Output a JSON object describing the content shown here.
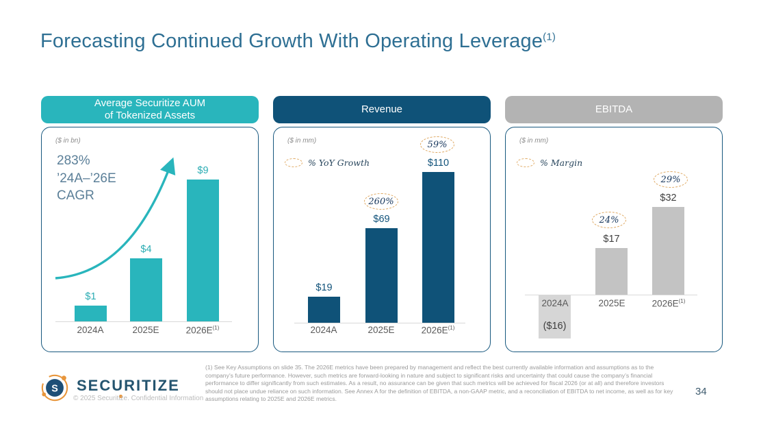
{
  "slide": {
    "title": "Forecasting Continued Growth With Operating Leverage",
    "footnote_marker": "(1)",
    "page_number": "34",
    "title_color": "#2e6f93"
  },
  "chart_data": [
    {
      "type": "bar",
      "title": "Average Securitize AUM\nof Tokenized Assets",
      "header_color": "#29b5bc",
      "unit": "($ in bn)",
      "annotation": "283%\n’24A–’26E\nCAGR",
      "categories": [
        "2024A",
        "2025E",
        "2026E"
      ],
      "values": [
        1,
        4,
        9
      ],
      "value_labels": [
        "$1",
        "$4",
        "$9"
      ],
      "bar_color": "#29b5bc",
      "ylim": [
        0,
        10
      ],
      "grid": false
    },
    {
      "type": "bar",
      "title": "Revenue",
      "header_color": "#0f5278",
      "unit": "($ in mm)",
      "legend": "% YoY Growth",
      "legend_position": "top-left",
      "categories": [
        "2024A",
        "2025E",
        "2026E"
      ],
      "values": [
        19,
        69,
        110
      ],
      "value_labels": [
        "$19",
        "$69",
        "$110"
      ],
      "growth_labels": [
        "",
        "260%",
        "59%"
      ],
      "bar_color": "#0f5278",
      "ylim": [
        0,
        120
      ],
      "grid": false
    },
    {
      "type": "bar",
      "title": "EBITDA",
      "header_color": "#b3b3b3",
      "unit": "($ in mm)",
      "legend": "% Margin",
      "legend_position": "top-left",
      "categories": [
        "2024A",
        "2025E",
        "2026E"
      ],
      "values": [
        -16,
        17,
        32
      ],
      "value_labels": [
        "($16)",
        "$17",
        "$32"
      ],
      "margin_labels": [
        "",
        "24%",
        "29%"
      ],
      "bar_color": "#c3c3c3",
      "negative_bar_color": "#d6d6d6",
      "ylim": [
        -20,
        40
      ],
      "grid": false
    }
  ],
  "footer": {
    "logo_text": "SECURITIZE",
    "copyright": "© 2025 Securitize. Confidential Information",
    "footnote": "(1) See Key Assumptions on slide 35. The 2026E metrics have been prepared by management and reflect the best currently available information and assumptions as to the company’s future performance. However, such metrics are forward-looking in nature and subject to significant risks and uncertainty that could cause the company’s financial performance to differ significantly from such estimates. As a result, no assurance can be given that such metrics will be achieved for fiscal 2026 (or at all) and therefore investors should not place undue reliance on such information. See Annex A for the definition of EBITDA, a non-GAAP metric, and a reconciliation of EBITDA to net income, as well as for key assumptions relating to 2025E and 2026E metrics."
  },
  "colors": {
    "accent_teal": "#29b5bc",
    "accent_navy": "#0f5278",
    "header_gray": "#b3b3b3",
    "annotation_dash": "#dfa861",
    "logo_orange": "#e8963c",
    "logo_navy": "#1d4f77"
  }
}
